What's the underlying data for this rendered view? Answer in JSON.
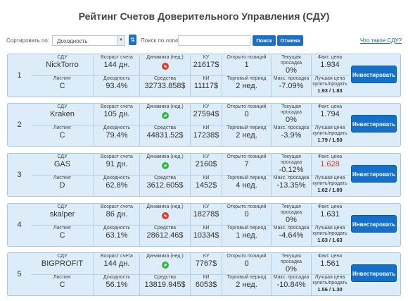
{
  "page": {
    "title": "Рейтинг Счетов Доверительного Управления (СДУ)"
  },
  "controls": {
    "sort_label": "Сортировать по:",
    "sort_value": "Доходность",
    "sort_dir_icon": "⇅",
    "search_label": "Поиск по логину:",
    "search_placeholder": "",
    "search_button": "Поиск",
    "cancel_button": "Отмена",
    "what_link": "Что такое СДУ?"
  },
  "labels": {
    "sdu": "СДУ",
    "age": "Возраст счета",
    "dynamics": "Динамика (нед.)",
    "ku": "КУ",
    "open": "Открыто позиций",
    "drawdown": "Текущая просадка",
    "price": "Факт. цена",
    "listing": "Листинг",
    "yield": "Доходность",
    "funds": "Средства",
    "ki": "КИ",
    "period": "Торговый период",
    "maxdd": "Макс. просадка",
    "best": "Лучшая цена купить/продать",
    "invest": "Инвестировать"
  },
  "colors": {
    "accent": "#1470c8",
    "card_bg": "#dcecf8",
    "down": "#e23b2e",
    "up": "#3bb44a",
    "negative_price": "#e0382b"
  },
  "rows": [
    {
      "rank": "1",
      "name": "NickTorro",
      "age": "144 дн.",
      "dynamics": "down",
      "ku": "21617$",
      "open": "1",
      "drawdown": "0%",
      "price": "1.934",
      "price_red": false,
      "listing": "C",
      "yield": "93.4%",
      "funds": "32733.858$",
      "ki": "11117$",
      "period": "2 нед.",
      "maxdd": "-7.09%",
      "best": "1.93 / 1.83"
    },
    {
      "rank": "2",
      "name": "Kraken",
      "age": "105 дн.",
      "dynamics": "up",
      "ku": "27594$",
      "open": "0",
      "drawdown": "0%",
      "price": "1.794",
      "price_red": false,
      "listing": "C",
      "yield": "79.4%",
      "funds": "44831.52$",
      "ki": "17238$",
      "period": "2 нед.",
      "maxdd": "-3.9%",
      "best": "1.79 / 1.50"
    },
    {
      "rank": "3",
      "name": "GAS",
      "age": "91 дн.",
      "dynamics": "up",
      "ku": "2160$",
      "open": "7",
      "drawdown": "-0.12%",
      "price": "1.628",
      "price_red": true,
      "listing": "D",
      "yield": "62.8%",
      "funds": "3612.605$",
      "ki": "1452$",
      "period": "4 нед.",
      "maxdd": "-13.35%",
      "best": "1.62 / 1.00"
    },
    {
      "rank": "4",
      "name": "skalper",
      "age": "86 дн.",
      "dynamics": "down",
      "ku": "18278$",
      "open": "0",
      "drawdown": "0%",
      "price": "1.631",
      "price_red": false,
      "listing": "C",
      "yield": "63.1%",
      "funds": "28612.46$",
      "ki": "10334$",
      "period": "1 нед.",
      "maxdd": "-4.64%",
      "best": "1.63 / 1.63"
    },
    {
      "rank": "5",
      "name": "BIGPROFIT",
      "age": "144 дн.",
      "dynamics": "up",
      "ku": "7767$",
      "open": "0",
      "drawdown": "0%",
      "price": "1.561",
      "price_red": false,
      "listing": "C",
      "yield": "56.1%",
      "funds": "13819.945$",
      "ki": "6053$",
      "period": "2 нед.",
      "maxdd": "-10.84%",
      "best": "1.56 / 1.30"
    }
  ]
}
